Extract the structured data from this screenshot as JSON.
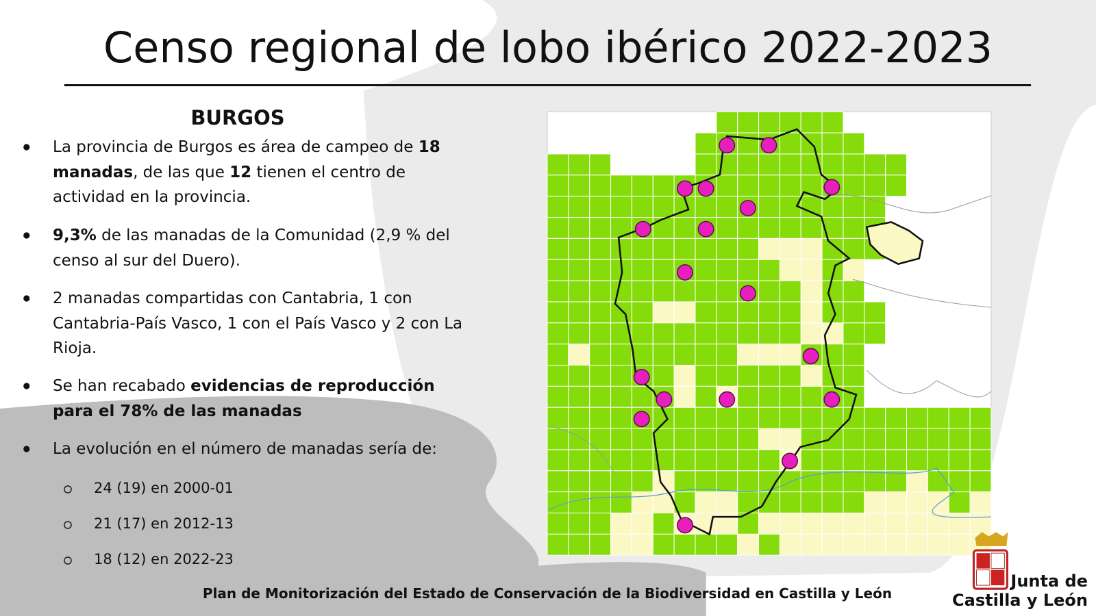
{
  "header": {
    "title": "Censo regional de lobo ibérico 2022-2023"
  },
  "section": {
    "heading": "BURGOS",
    "bullets": [
      {
        "runs": [
          {
            "text": "La provincia de Burgos es área de campeo de "
          },
          {
            "text": "18 manadas",
            "bold": true
          },
          {
            "text": ", de las que "
          },
          {
            "text": "12",
            "bold": true
          },
          {
            "text": " tienen el centro de actividad en la provincia."
          }
        ]
      },
      {
        "runs": [
          {
            "text": "9,3%",
            "bold": true
          },
          {
            "text": " de las manadas de la Comunidad (2,9 % del censo al sur del Duero)."
          }
        ]
      },
      {
        "runs": [
          {
            "text": "2 manadas compartidas con Cantabria, 1 con Cantabria-País Vasco, 1 con el País Vasco y 2 con La Rioja."
          }
        ]
      },
      {
        "runs": [
          {
            "text": "Se han recabado "
          },
          {
            "text": "evidencias de reproducción para el 78% de las manadas",
            "bold": true
          }
        ]
      },
      {
        "runs": [
          {
            "text": "La evolución en el número de manadas sería de:"
          }
        ]
      }
    ],
    "sub_items": [
      "24 (19) en 2000-01",
      "21 (17) en 2012-13",
      "18 (12) en 2022-23"
    ]
  },
  "footer": {
    "text": "Plan de Monitorización del Estado de Conservación de la Biodiversidad en Castilla y León"
  },
  "logo": {
    "lines": [
      "Junta de",
      "Castilla y León"
    ]
  }
}
